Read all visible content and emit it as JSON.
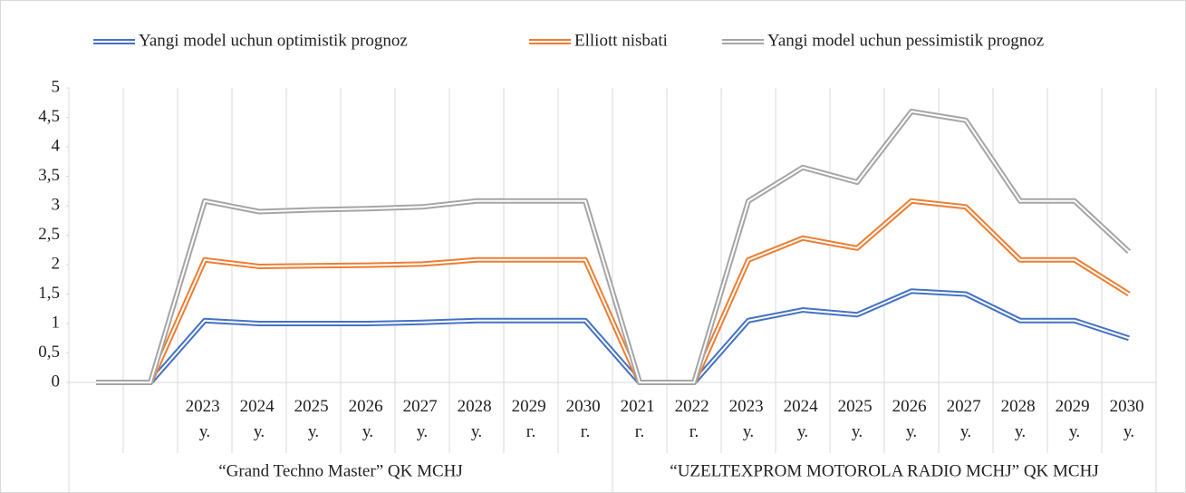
{
  "chart_data": {
    "type": "line",
    "categories": [
      null,
      null,
      "2023 у.",
      "2024 у.",
      "2025 у.",
      "2026 у.",
      "2027 у.",
      "2028 у.",
      "2029 г.",
      "2030 г.",
      "2021 г.",
      "2022 г.",
      "2023 у.",
      "2024 у.",
      "2025 у.",
      "2026 у.",
      "2027 у.",
      "2028 у.",
      "2029 у.",
      "2030 у."
    ],
    "category_groups": [
      "“Grand Techno Master” QK MCHJ",
      "“UZELTEXPROM MOTOROLA RADIO MCHJ” QK MCHJ"
    ],
    "series": [
      {
        "name": "Yangi model uchun optimistik prognoz",
        "color": "#4472c4",
        "values": [
          0,
          0,
          1.05,
          1.0,
          1.0,
          1.0,
          1.02,
          1.05,
          1.05,
          1.05,
          0,
          0,
          1.05,
          1.23,
          1.15,
          1.55,
          1.5,
          1.05,
          1.05,
          0.75
        ]
      },
      {
        "name": "Elliott nisbati",
        "color": "#ed7d31",
        "values": [
          0,
          0,
          2.08,
          1.97,
          1.98,
          1.99,
          2.01,
          2.08,
          2.08,
          2.08,
          0,
          0,
          2.08,
          2.45,
          2.28,
          3.08,
          2.98,
          2.08,
          2.08,
          1.5
        ]
      },
      {
        "name": "Yangi model uchun pessimistik prognoz",
        "color": "#a5a5a5",
        "values": [
          0,
          0,
          3.08,
          2.9,
          2.93,
          2.95,
          2.98,
          3.08,
          3.08,
          3.08,
          0,
          0,
          3.08,
          3.65,
          3.4,
          4.6,
          4.45,
          3.08,
          3.08,
          2.22
        ]
      }
    ],
    "ylim": [
      0,
      5
    ],
    "yticks": [
      0,
      {
        "value": 0.5,
        "label": "0,5"
      },
      1,
      {
        "value": 1.5,
        "label": "1,5"
      },
      2,
      {
        "value": 2.5,
        "label": "2,5"
      },
      3,
      {
        "value": 3.5,
        "label": "3,5"
      },
      4,
      {
        "value": 4.5,
        "label": "4,5"
      },
      5
    ],
    "legend": "top"
  }
}
